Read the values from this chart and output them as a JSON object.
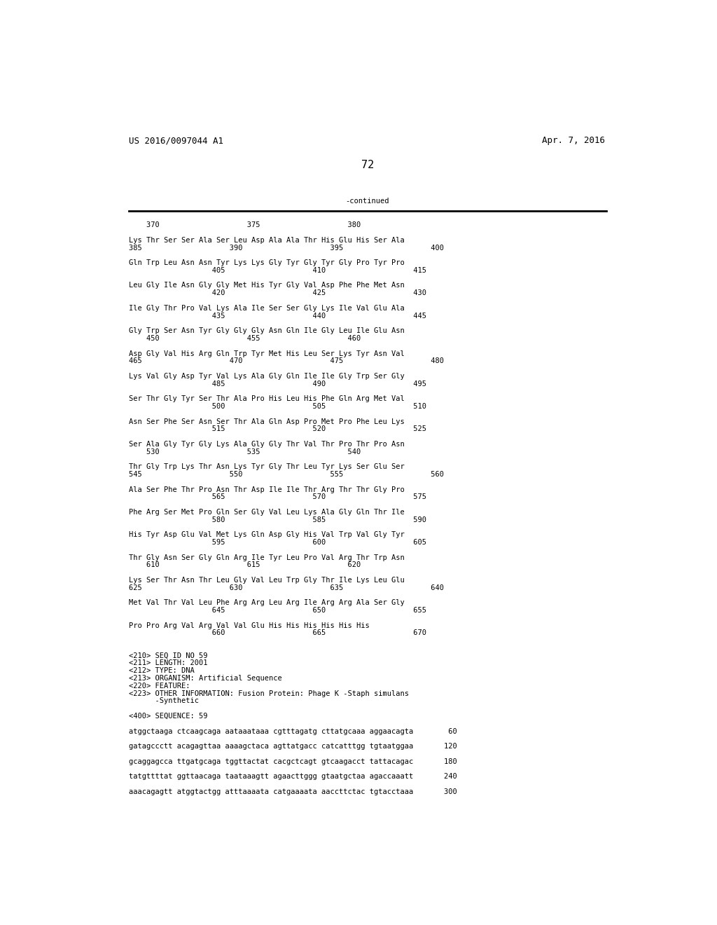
{
  "header_left": "US 2016/0097044 A1",
  "header_right": "Apr. 7, 2016",
  "page_number": "72",
  "continued_label": "-continued",
  "background_color": "#ffffff",
  "text_color": "#000000",
  "font_size": 7.5,
  "header_font_size": 9.0,
  "page_num_font_size": 11,
  "content_lines": [
    "    370                    375                    380",
    "",
    "Lys Thr Ser Ser Ala Ser Leu Asp Ala Ala Thr His Glu His Ser Ala",
    "385                    390                    395                    400",
    "",
    "Gln Trp Leu Asn Asn Tyr Lys Lys Gly Tyr Gly Tyr Gly Pro Tyr Pro",
    "                   405                    410                    415",
    "",
    "Leu Gly Ile Asn Gly Gly Met His Tyr Gly Val Asp Phe Phe Met Asn",
    "                   420                    425                    430",
    "",
    "Ile Gly Thr Pro Val Lys Ala Ile Ser Ser Gly Lys Ile Val Glu Ala",
    "                   435                    440                    445",
    "",
    "Gly Trp Ser Asn Tyr Gly Gly Gly Asn Gln Ile Gly Leu Ile Glu Asn",
    "    450                    455                    460",
    "",
    "Asp Gly Val His Arg Gln Trp Tyr Met His Leu Ser Lys Tyr Asn Val",
    "465                    470                    475                    480",
    "",
    "Lys Val Gly Asp Tyr Val Lys Ala Gly Gln Ile Ile Gly Trp Ser Gly",
    "                   485                    490                    495",
    "",
    "Ser Thr Gly Tyr Ser Thr Ala Pro His Leu His Phe Gln Arg Met Val",
    "                   500                    505                    510",
    "",
    "Asn Ser Phe Ser Asn Ser Thr Ala Gln Asp Pro Met Pro Phe Leu Lys",
    "                   515                    520                    525",
    "",
    "Ser Ala Gly Tyr Gly Lys Ala Gly Gly Thr Val Thr Pro Thr Pro Asn",
    "    530                    535                    540",
    "",
    "Thr Gly Trp Lys Thr Asn Lys Tyr Gly Thr Leu Tyr Lys Ser Glu Ser",
    "545                    550                    555                    560",
    "",
    "Ala Ser Phe Thr Pro Asn Thr Asp Ile Ile Thr Arg Thr Thr Gly Pro",
    "                   565                    570                    575",
    "",
    "Phe Arg Ser Met Pro Gln Ser Gly Val Leu Lys Ala Gly Gln Thr Ile",
    "                   580                    585                    590",
    "",
    "His Tyr Asp Glu Val Met Lys Gln Asp Gly His Val Trp Val Gly Tyr",
    "                   595                    600                    605",
    "",
    "Thr Gly Asn Ser Gly Gln Arg Ile Tyr Leu Pro Val Arg Thr Trp Asn",
    "    610                    615                    620",
    "",
    "Lys Ser Thr Asn Thr Leu Gly Val Leu Trp Gly Thr Ile Lys Leu Glu",
    "625                    630                    635                    640",
    "",
    "Met Val Thr Val Leu Phe Arg Arg Leu Arg Ile Arg Arg Ala Ser Gly",
    "                   645                    650                    655",
    "",
    "Pro Pro Arg Val Arg Val Val Glu His His His His His His",
    "                   660                    665                    670",
    "",
    "",
    "<210> SEQ ID NO 59",
    "<211> LENGTH: 2001",
    "<212> TYPE: DNA",
    "<213> ORGANISM: Artificial Sequence",
    "<220> FEATURE:",
    "<223> OTHER INFORMATION: Fusion Protein: Phage K -Staph simulans",
    "      -Synthetic",
    "",
    "<400> SEQUENCE: 59",
    "",
    "atggctaaga ctcaagcaga aataaataaa cgtttagatg cttatgcaaa aggaacagta        60",
    "",
    "gatagccctt acagagttaa aaaagctaca agttatgacc catcatttgg tgtaatggaa       120",
    "",
    "gcaggagcca ttgatgcaga tggttactat cacgctcagt gtcaagacct tattacagac       180",
    "",
    "tatgttttat ggttaacaga taataaagtt agaacttggg gtaatgctaa agaccaaatt       240",
    "",
    "aaacagagtt atggtactgg atttaaaata catgaaaata aaccttctac tgtacctaaa       300"
  ]
}
